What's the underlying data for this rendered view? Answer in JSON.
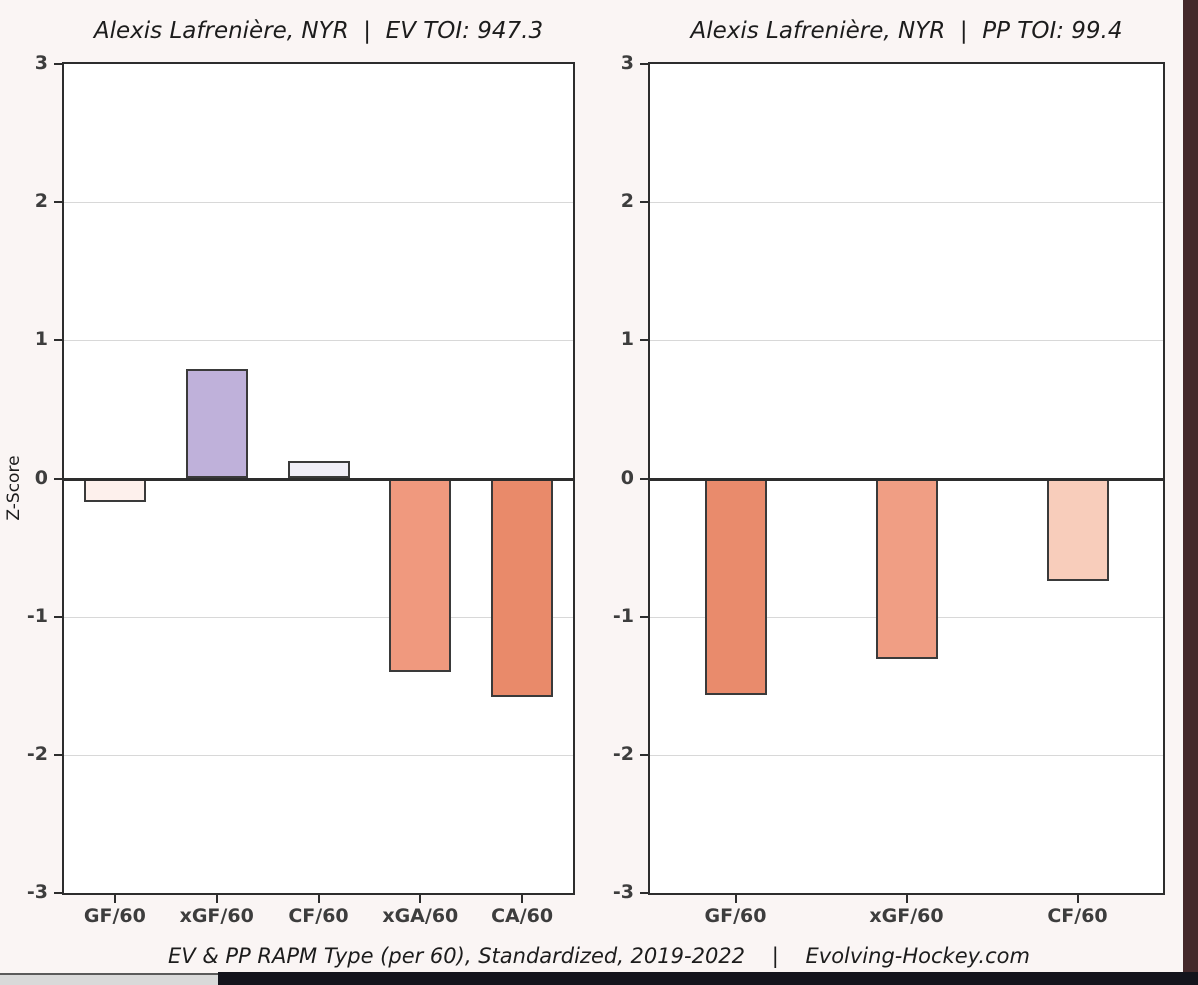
{
  "page": {
    "background": "#faf5f4",
    "right_strip_color": "#44292b",
    "bottom_bar_light_color": "#d9d9d9",
    "bottom_bar_dark_color": "#14141c"
  },
  "caption": "EV & PP RAPM Type (per 60), Standardized, 2019-2022    |    Evolving-Hockey.com",
  "chart_data": [
    {
      "type": "bar",
      "title": "Alexis Lafrenière, NYR  |  EV TOI: 947.3",
      "ylabel": "Z-Score",
      "ylim": [
        -3,
        3
      ],
      "ytick_labels": [
        "3",
        "2",
        "1",
        "0",
        "-1",
        "-2",
        "-3"
      ],
      "yticks": [
        3,
        2,
        1,
        0,
        -1,
        -2,
        -3
      ],
      "grid": true,
      "legend_position": "none",
      "categories": [
        "GF/60",
        "xGF/60",
        "CF/60",
        "xGA/60",
        "CA/60"
      ],
      "values": [
        -0.17,
        0.79,
        0.13,
        -1.4,
        -1.58
      ],
      "bar_colors": [
        "#fdf0ec",
        "#bfb1da",
        "#f0eef7",
        "#f0997e",
        "#e98a6a"
      ]
    },
    {
      "type": "bar",
      "title": "Alexis Lafrenière, NYR  |  PP TOI: 99.4",
      "ylabel": "",
      "ylim": [
        -3,
        3
      ],
      "ytick_labels": [
        "3",
        "2",
        "1",
        "0",
        "-1",
        "-2",
        "-3"
      ],
      "yticks": [
        3,
        2,
        1,
        0,
        -1,
        -2,
        -3
      ],
      "grid": true,
      "legend_position": "none",
      "categories": [
        "GF/60",
        "xGF/60",
        "CF/60"
      ],
      "values": [
        -1.57,
        -1.31,
        -0.74
      ],
      "bar_colors": [
        "#e98b6c",
        "#f09e84",
        "#f8cdbb"
      ]
    }
  ]
}
